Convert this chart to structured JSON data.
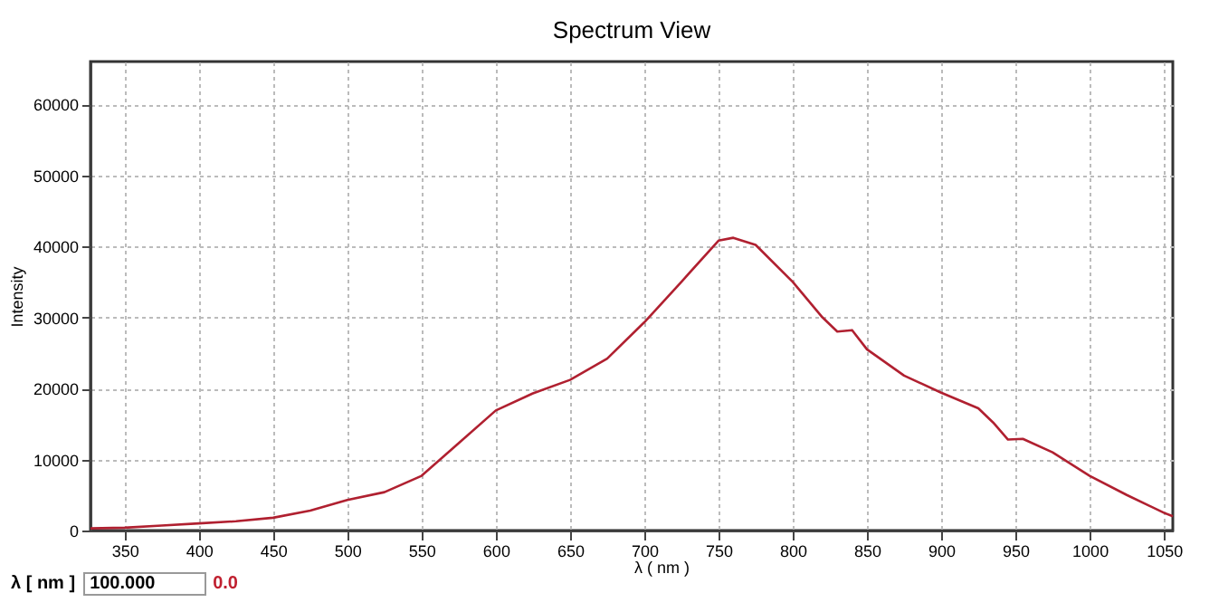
{
  "chart_data": {
    "type": "line",
    "title": "Spectrum View",
    "xlabel": "λ ( nm )",
    "ylabel": "Intensity",
    "x": [
      327,
      350,
      375,
      400,
      425,
      450,
      475,
      500,
      525,
      550,
      575,
      600,
      625,
      650,
      675,
      700,
      725,
      750,
      760,
      775,
      800,
      820,
      830,
      840,
      850,
      875,
      900,
      925,
      935,
      945,
      955,
      975,
      1000,
      1025,
      1050,
      1056
    ],
    "series": [
      {
        "color": "#b02030",
        "values": [
          300,
          400,
          700,
          1000,
          1300,
          1800,
          2800,
          4300,
          5400,
          7700,
          12300,
          16900,
          19300,
          21200,
          24200,
          29300,
          35000,
          40800,
          41200,
          40200,
          35000,
          30000,
          28000,
          28200,
          25500,
          21800,
          19400,
          17200,
          15200,
          12800,
          12900,
          11000,
          7700,
          5000,
          2500,
          2000
        ]
      }
    ],
    "xlim": [
      327,
      1056
    ],
    "ylim": [
      0,
      66000
    ],
    "xticks": [
      350,
      400,
      450,
      500,
      550,
      600,
      650,
      700,
      750,
      800,
      850,
      900,
      950,
      1000,
      1050
    ],
    "yticks": [
      0,
      10000,
      20000,
      30000,
      40000,
      50000,
      60000
    ],
    "grid": true,
    "legend": false,
    "marker": "none",
    "line_style": "solid",
    "annotations": [
      "λ [ nm ]",
      "100.000",
      "0.0"
    ]
  }
}
